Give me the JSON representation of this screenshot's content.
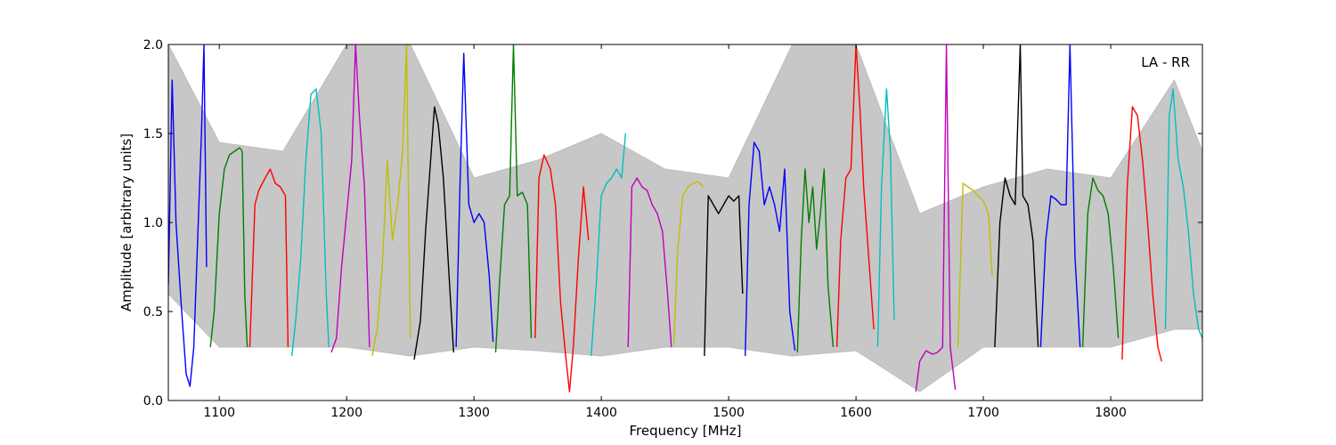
{
  "chart_data": {
    "type": "line",
    "title": "",
    "annotation": "LA - RR",
    "xlabel": "Frequency [MHz]",
    "ylabel": "Amplitude [arbitrary units]",
    "xlim": [
      1060,
      1872
    ],
    "ylim": [
      0.0,
      2.0
    ],
    "x_ticks": [
      1100,
      1200,
      1300,
      1400,
      1500,
      1600,
      1700,
      1800
    ],
    "x_tick_labels": [
      "1100",
      "1200",
      "1300",
      "1400",
      "1500",
      "1600",
      "1700",
      "1800"
    ],
    "y_ticks": [
      0.0,
      0.5,
      1.0,
      1.5,
      2.0
    ],
    "y_tick_labels": [
      "0.0",
      "0.5",
      "1.0",
      "1.5",
      "2.0"
    ],
    "grid": false,
    "legend": "none",
    "reference_band": {
      "color": "#bdbdbd",
      "x": [
        1060,
        1100,
        1150,
        1200,
        1250,
        1300,
        1350,
        1400,
        1450,
        1500,
        1550,
        1600,
        1650,
        1700,
        1750,
        1800,
        1850,
        1872
      ],
      "lower": [
        0.6,
        0.3,
        0.3,
        0.3,
        0.25,
        0.3,
        0.28,
        0.25,
        0.3,
        0.3,
        0.25,
        0.28,
        0.05,
        0.3,
        0.3,
        0.3,
        0.4,
        0.4
      ],
      "upper": [
        2.0,
        1.45,
        1.4,
        2.0,
        2.0,
        1.25,
        1.35,
        1.5,
        1.3,
        1.25,
        2.0,
        2.0,
        1.05,
        1.2,
        1.3,
        1.25,
        1.8,
        1.4
      ]
    },
    "series": [
      {
        "color": "#0000ff",
        "x": [
          1060,
          1063,
          1066,
          1070,
          1074,
          1077,
          1080,
          1083,
          1086,
          1088,
          1090
        ],
        "y": [
          0.65,
          1.8,
          1.0,
          0.55,
          0.15,
          0.08,
          0.3,
          0.9,
          1.5,
          2.0,
          0.75
        ]
      },
      {
        "color": "#007f00",
        "x": [
          1093,
          1096,
          1100,
          1104,
          1108,
          1112,
          1116,
          1118,
          1120,
          1122
        ],
        "y": [
          0.3,
          0.5,
          1.05,
          1.3,
          1.38,
          1.4,
          1.42,
          1.4,
          0.6,
          0.3
        ]
      },
      {
        "color": "#ff0000",
        "x": [
          1124,
          1128,
          1131,
          1136,
          1140,
          1144,
          1148,
          1152,
          1154
        ],
        "y": [
          0.3,
          1.1,
          1.18,
          1.25,
          1.3,
          1.22,
          1.2,
          1.15,
          0.3
        ]
      },
      {
        "color": "#00bfbf",
        "x": [
          1157,
          1160,
          1164,
          1168,
          1172,
          1176,
          1180,
          1184,
          1186
        ],
        "y": [
          0.25,
          0.45,
          0.8,
          1.35,
          1.72,
          1.75,
          1.5,
          0.6,
          0.3
        ]
      },
      {
        "color": "#bf00bf",
        "x": [
          1188,
          1192,
          1196,
          1200,
          1204,
          1207,
          1210,
          1214,
          1218
        ],
        "y": [
          0.27,
          0.35,
          0.75,
          1.05,
          1.35,
          2.0,
          1.6,
          1.2,
          0.3
        ]
      },
      {
        "color": "#bfbf00",
        "x": [
          1220,
          1224,
          1228,
          1232,
          1236,
          1240,
          1244,
          1247,
          1250
        ],
        "y": [
          0.25,
          0.4,
          0.75,
          1.35,
          0.9,
          1.1,
          1.4,
          2.0,
          0.35
        ]
      },
      {
        "color": "#000000",
        "x": [
          1253,
          1258,
          1262,
          1266,
          1269,
          1272,
          1276,
          1280,
          1284
        ],
        "y": [
          0.23,
          0.45,
          0.95,
          1.35,
          1.65,
          1.55,
          1.25,
          0.75,
          0.27
        ]
      },
      {
        "color": "#0000ff",
        "x": [
          1286,
          1289,
          1292,
          1296,
          1300,
          1304,
          1308,
          1312,
          1315
        ],
        "y": [
          0.3,
          1.2,
          1.95,
          1.1,
          1.0,
          1.05,
          1.0,
          0.7,
          0.33
        ]
      },
      {
        "color": "#007f00",
        "x": [
          1317,
          1320,
          1324,
          1328,
          1331,
          1334,
          1338,
          1342,
          1345
        ],
        "y": [
          0.27,
          0.65,
          1.1,
          1.15,
          2.0,
          1.15,
          1.17,
          1.1,
          0.35
        ]
      },
      {
        "color": "#ff0000",
        "x": [
          1348,
          1351,
          1355,
          1360,
          1364,
          1368,
          1372,
          1375,
          1378,
          1382,
          1386,
          1390
        ],
        "y": [
          0.35,
          1.25,
          1.38,
          1.3,
          1.1,
          0.55,
          0.25,
          0.05,
          0.3,
          0.8,
          1.2,
          0.9
        ]
      },
      {
        "color": "#00bfbf",
        "x": [
          1392,
          1396,
          1400,
          1404,
          1408,
          1412,
          1416,
          1419
        ],
        "y": [
          0.25,
          0.65,
          1.15,
          1.22,
          1.25,
          1.3,
          1.25,
          1.5
        ]
      },
      {
        "color": "#bf00bf",
        "x": [
          1421,
          1424,
          1428,
          1432,
          1436,
          1440,
          1444,
          1448,
          1452,
          1455
        ],
        "y": [
          0.3,
          1.2,
          1.25,
          1.2,
          1.18,
          1.1,
          1.05,
          0.95,
          0.6,
          0.3
        ]
      },
      {
        "color": "#bfbf00",
        "x": [
          1457,
          1460,
          1464,
          1468,
          1472,
          1476,
          1480
        ],
        "y": [
          0.32,
          0.85,
          1.15,
          1.2,
          1.22,
          1.23,
          1.2
        ]
      },
      {
        "color": "#000000",
        "x": [
          1481,
          1484,
          1488,
          1492,
          1496,
          1500,
          1504,
          1508,
          1511
        ],
        "y": [
          0.25,
          1.15,
          1.1,
          1.05,
          1.1,
          1.15,
          1.12,
          1.15,
          0.6
        ]
      },
      {
        "color": "#0000ff",
        "x": [
          1513,
          1516,
          1520,
          1524,
          1528,
          1532,
          1536,
          1540,
          1544,
          1548,
          1552
        ],
        "y": [
          0.25,
          1.1,
          1.45,
          1.4,
          1.1,
          1.2,
          1.1,
          0.95,
          1.3,
          0.5,
          0.28
        ]
      },
      {
        "color": "#007f00",
        "x": [
          1554,
          1557,
          1560,
          1563,
          1566,
          1569,
          1572,
          1575,
          1578,
          1582
        ],
        "y": [
          0.27,
          0.9,
          1.3,
          1.0,
          1.2,
          0.85,
          1.05,
          1.3,
          0.65,
          0.3
        ]
      },
      {
        "color": "#ff0000",
        "x": [
          1585,
          1588,
          1592,
          1596,
          1600,
          1603,
          1606,
          1610,
          1614
        ],
        "y": [
          0.3,
          0.9,
          1.25,
          1.3,
          2.0,
          1.65,
          1.2,
          0.8,
          0.4
        ]
      },
      {
        "color": "#00bfbf",
        "x": [
          1617,
          1620,
          1624,
          1627,
          1630
        ],
        "y": [
          0.3,
          1.2,
          1.75,
          1.4,
          0.45
        ]
      },
      {
        "color": "#bf00bf",
        "x": [
          1647,
          1650,
          1655,
          1660,
          1664,
          1668,
          1671,
          1674,
          1678
        ],
        "y": [
          0.05,
          0.22,
          0.28,
          0.26,
          0.27,
          0.3,
          2.0,
          0.3,
          0.06
        ]
      },
      {
        "color": "#bfbf00",
        "x": [
          1680,
          1684,
          1688,
          1692,
          1696,
          1700,
          1704,
          1707
        ],
        "y": [
          0.3,
          1.22,
          1.2,
          1.18,
          1.15,
          1.12,
          1.05,
          0.7
        ]
      },
      {
        "color": "#000000",
        "x": [
          1709,
          1713,
          1717,
          1721,
          1725,
          1729,
          1731,
          1735,
          1739,
          1743
        ],
        "y": [
          0.3,
          1.0,
          1.25,
          1.15,
          1.1,
          2.0,
          1.15,
          1.1,
          0.9,
          0.3
        ]
      },
      {
        "color": "#0000ff",
        "x": [
          1745,
          1749,
          1753,
          1757,
          1761,
          1765,
          1768,
          1772,
          1776
        ],
        "y": [
          0.3,
          0.9,
          1.15,
          1.13,
          1.1,
          1.1,
          2.0,
          0.8,
          0.3
        ]
      },
      {
        "color": "#007f00",
        "x": [
          1778,
          1782,
          1786,
          1790,
          1794,
          1798,
          1802,
          1806
        ],
        "y": [
          0.3,
          1.05,
          1.25,
          1.18,
          1.15,
          1.05,
          0.75,
          0.35
        ]
      },
      {
        "color": "#ff0000",
        "x": [
          1809,
          1813,
          1817,
          1821,
          1825,
          1829,
          1833,
          1837,
          1840
        ],
        "y": [
          0.23,
          1.2,
          1.65,
          1.6,
          1.35,
          1.0,
          0.6,
          0.3,
          0.22
        ]
      },
      {
        "color": "#00bfbf",
        "x": [
          1843,
          1846,
          1849,
          1853,
          1857,
          1861,
          1865,
          1869,
          1872
        ],
        "y": [
          0.4,
          1.6,
          1.75,
          1.35,
          1.2,
          0.95,
          0.6,
          0.4,
          0.35
        ]
      }
    ]
  }
}
